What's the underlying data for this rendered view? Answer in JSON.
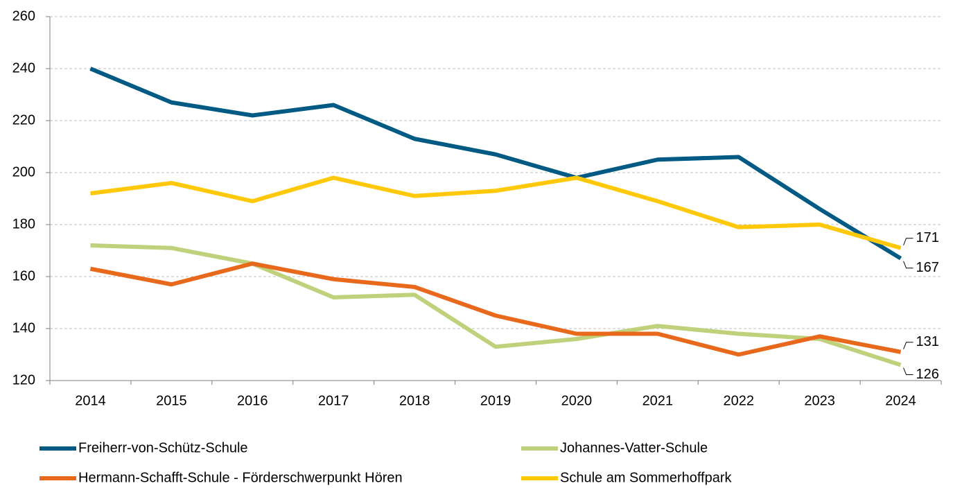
{
  "chart_data": {
    "type": "line",
    "categories": [
      "2014",
      "2015",
      "2016",
      "2017",
      "2018",
      "2019",
      "2020",
      "2021",
      "2022",
      "2023",
      "2024"
    ],
    "series": [
      {
        "name": "Freiherr-von-Schütz-Schule",
        "color": "#005a84",
        "values": [
          240,
          227,
          222,
          226,
          213,
          207,
          198,
          205,
          206,
          186,
          167
        ]
      },
      {
        "name": "Johannes-Vatter-Schule",
        "color": "#bfd17b",
        "values": [
          172,
          171,
          165,
          152,
          153,
          133,
          136,
          141,
          138,
          136,
          126
        ]
      },
      {
        "name": "Hermann-Schafft-Schule - Förderschwerpunkt Hören",
        "color": "#e8691b",
        "values": [
          163,
          157,
          165,
          159,
          156,
          145,
          138,
          138,
          130,
          137,
          131
        ]
      },
      {
        "name": "Schule am Sommerhoffpark",
        "color": "#ffc90a",
        "values": [
          192,
          196,
          189,
          198,
          191,
          193,
          198,
          189,
          179,
          180,
          171
        ]
      }
    ],
    "ylim": [
      120,
      260
    ],
    "yticks": [
      120,
      140,
      160,
      180,
      200,
      220,
      240,
      260
    ],
    "grid": true,
    "legend": "bottom",
    "data_labels": "last"
  }
}
